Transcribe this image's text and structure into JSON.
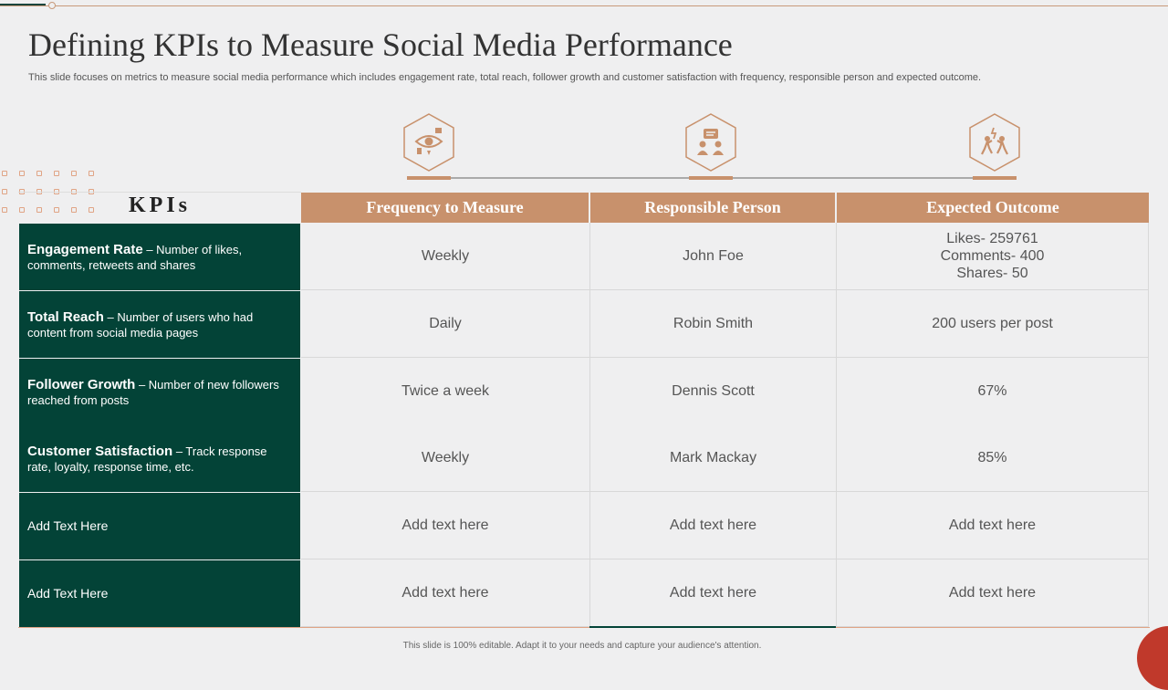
{
  "slide": {
    "title": "Defining KPIs to Measure Social Media Performance",
    "subtitle": "This slide focuses on metrics to measure social media performance which includes engagement rate, total reach, follower growth and customer satisfaction with frequency, responsible person and expected outcome.",
    "footer": "This slide is 100% editable. Adapt it to your needs and capture your audience's attention."
  },
  "colors": {
    "accent": "#c8916c",
    "dark_green": "#034337",
    "background": "#efeff0",
    "corner_red": "#c0392b"
  },
  "icons": [
    "eye-gesture-icon",
    "team-discussion-icon",
    "achievement-people-icon"
  ],
  "table": {
    "kpi_heading": "KPIs",
    "headers": [
      "Frequency to Measure",
      "Responsible Person",
      "Expected Outcome"
    ],
    "rows": [
      {
        "kpi_name": "Engagement Rate",
        "kpi_desc": " – Number of likes, comments, retweets and shares",
        "frequency": "Weekly",
        "person": "John Foe",
        "outcome": "Likes- 259761\nComments- 400\nShares- 50"
      },
      {
        "kpi_name": "Total Reach",
        "kpi_desc": " – Number of users who had content from social media pages",
        "frequency": "Daily",
        "person": "Robin Smith",
        "outcome": "200 users per post"
      },
      {
        "kpi_name": "Follower Growth",
        "kpi_desc": " – Number of new followers reached from posts",
        "frequency": "Twice a week",
        "person": "Dennis Scott",
        "outcome": "67%"
      },
      {
        "kpi_name": "Customer Satisfaction",
        "kpi_desc": " – Track response rate, loyalty, response time, etc.",
        "frequency": "Weekly",
        "person": "Mark Mackay",
        "outcome": "85%"
      },
      {
        "kpi_name": "",
        "kpi_desc": "Add Text Here",
        "frequency": "Add text here",
        "person": "Add text here",
        "outcome": "Add text here"
      },
      {
        "kpi_name": "",
        "kpi_desc": "Add Text Here",
        "frequency": "Add text here",
        "person": "Add text here",
        "outcome": "Add text here"
      }
    ]
  }
}
